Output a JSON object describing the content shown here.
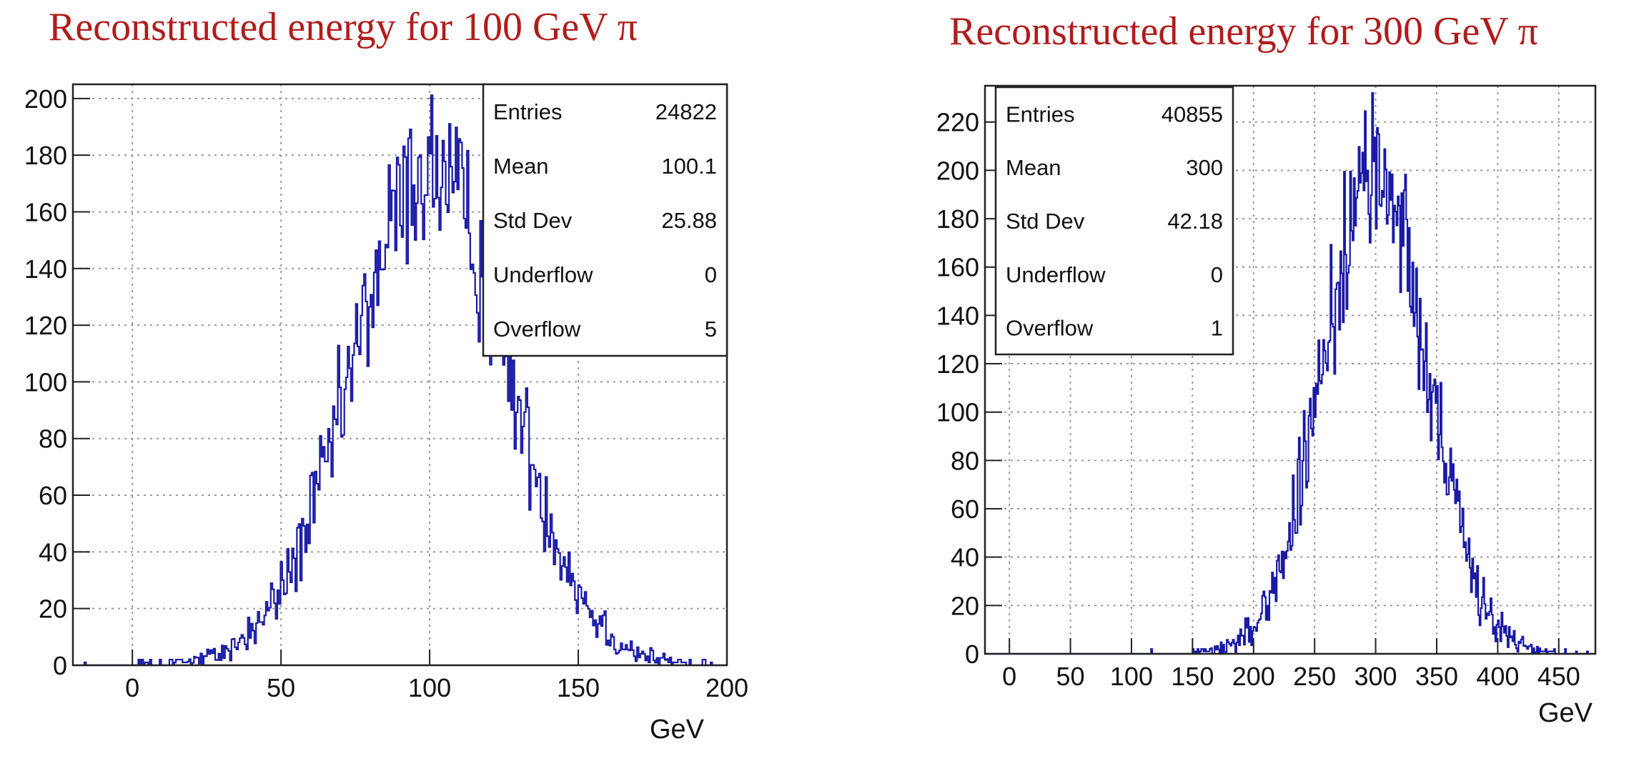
{
  "colors": {
    "title": "#b01c1c",
    "histogram": "#1a1aa6",
    "grid": "#9a9a9a",
    "frame": "#222222"
  },
  "chart_data": [
    {
      "type": "histogram",
      "title": "Reconstructed energy for 100 GeV π",
      "xlabel": "GeV",
      "ylabel": "",
      "xlim": [
        -20,
        200
      ],
      "ylim": [
        0,
        205
      ],
      "xticks": [
        0,
        50,
        100,
        150,
        200
      ],
      "yticks": [
        0,
        20,
        40,
        60,
        80,
        100,
        120,
        140,
        160,
        180,
        200
      ],
      "grid": true,
      "mean": 100.1,
      "sigma": 25.88,
      "peak": 175,
      "nbins": 400,
      "stats_position": "top-right",
      "stats": [
        {
          "label": "Entries",
          "value": "24822"
        },
        {
          "label": "Mean",
          "value": "100.1"
        },
        {
          "label": "Std Dev",
          "value": "25.88"
        },
        {
          "label": "Underflow",
          "value": "0"
        },
        {
          "label": "Overflow",
          "value": "5"
        }
      ]
    },
    {
      "type": "histogram",
      "title": "Reconstructed energy for 300 GeV π",
      "xlabel": "GeV",
      "ylabel": "",
      "xlim": [
        -20,
        480
      ],
      "ylim": [
        0,
        235
      ],
      "xticks": [
        0,
        50,
        100,
        150,
        200,
        250,
        300,
        350,
        400,
        450
      ],
      "yticks": [
        0,
        20,
        40,
        60,
        80,
        100,
        120,
        140,
        160,
        180,
        200,
        220
      ],
      "grid": true,
      "mean": 300,
      "sigma": 42.18,
      "peak": 200,
      "nbins": 500,
      "stats_position": "top-left",
      "stats": [
        {
          "label": "Entries",
          "value": "40855"
        },
        {
          "label": "Mean",
          "value": "300"
        },
        {
          "label": "Std Dev",
          "value": "42.18"
        },
        {
          "label": "Underflow",
          "value": "0"
        },
        {
          "label": "Overflow",
          "value": "1"
        }
      ]
    }
  ]
}
